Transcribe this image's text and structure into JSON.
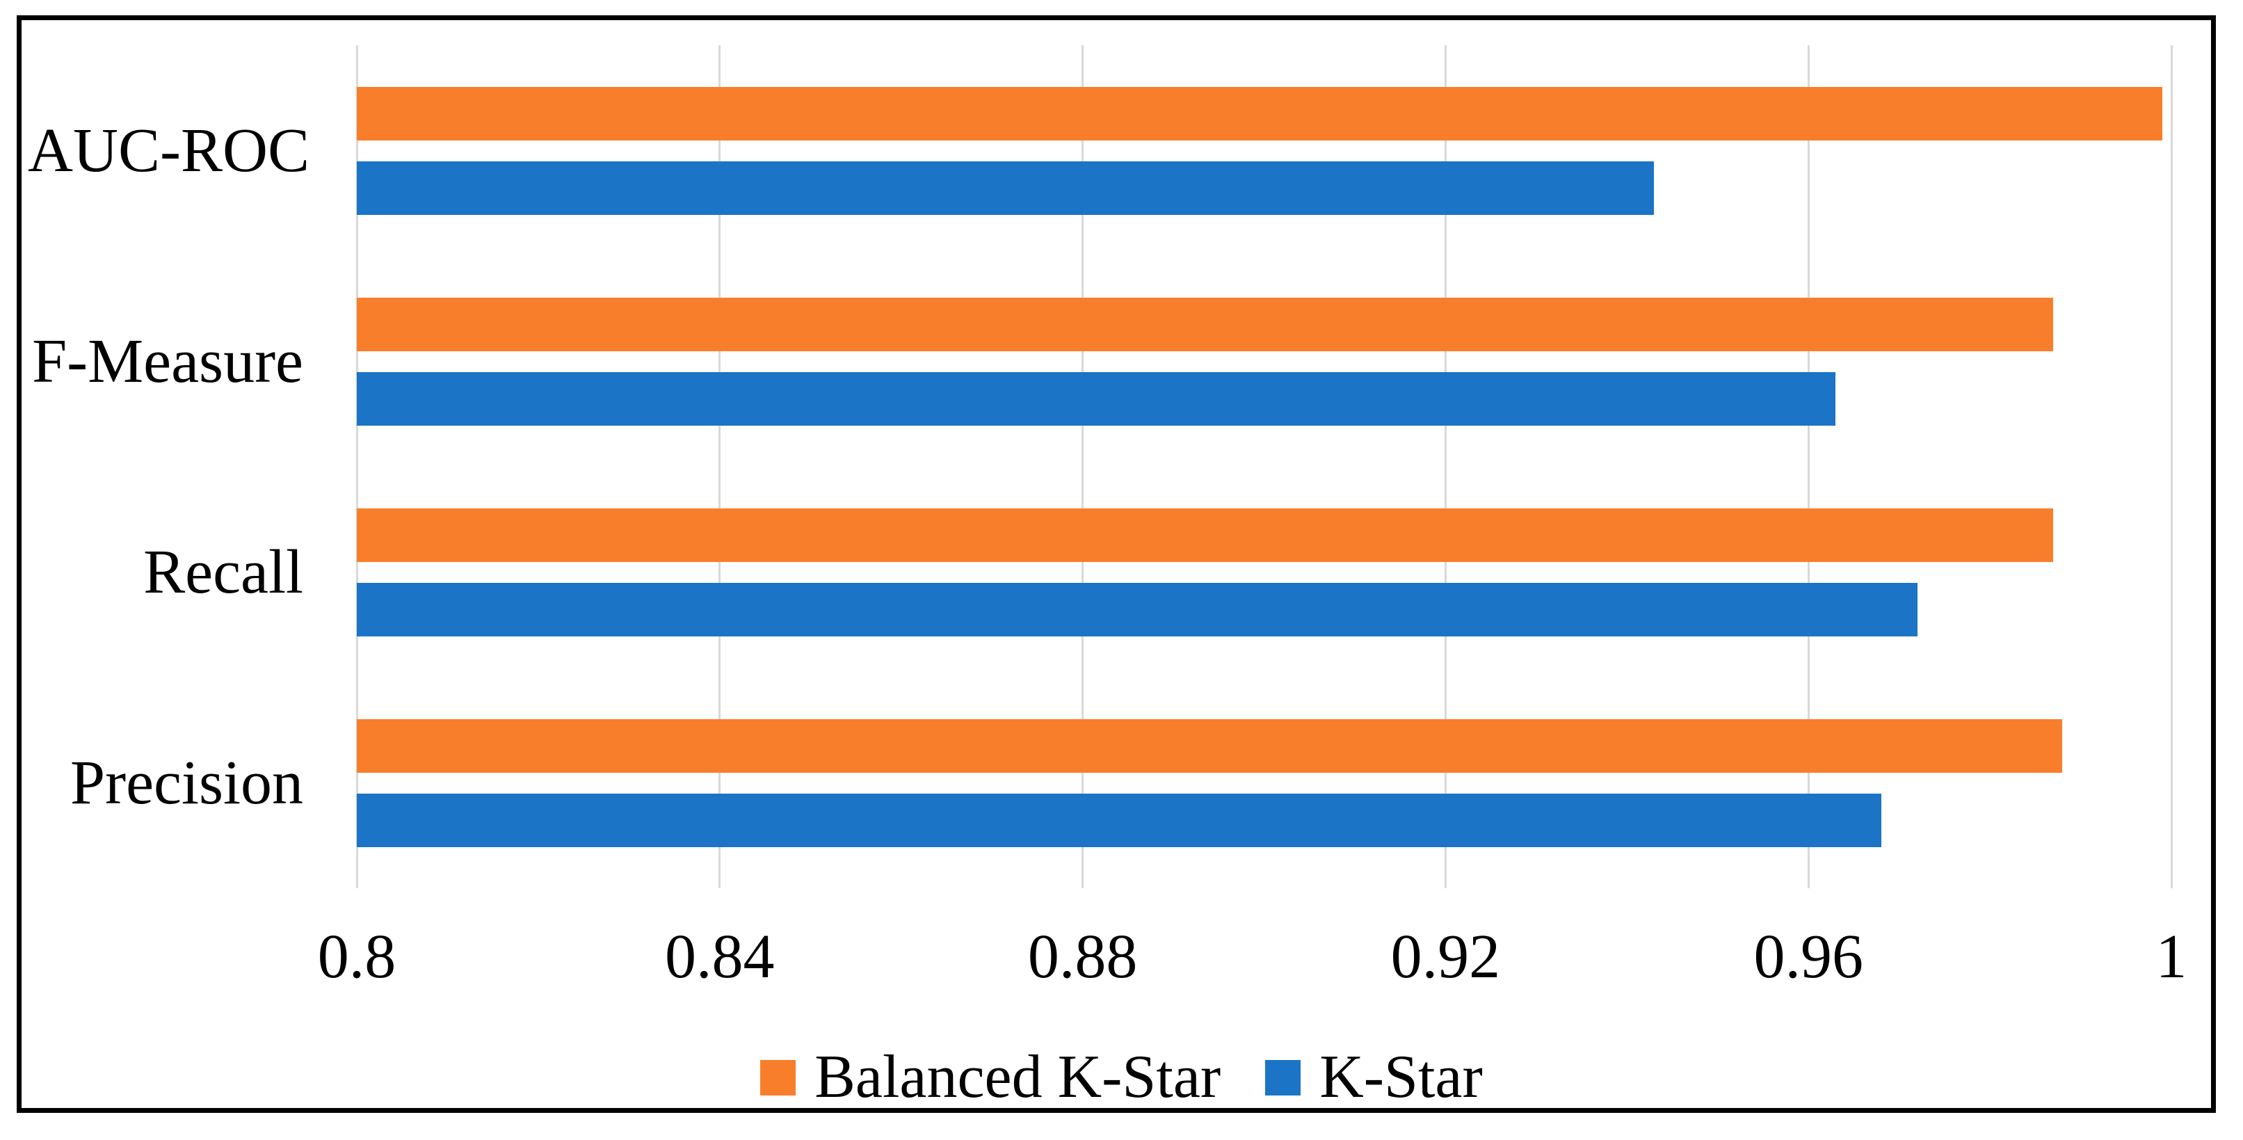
{
  "figure": {
    "background_color": "#FFFFFF",
    "border_color": "#000000",
    "text_color": "#000000",
    "gridline_color": "#D9D9D9"
  },
  "chart_data": {
    "type": "bar",
    "orientation": "horizontal",
    "title": "",
    "categories": [
      "AUC-ROC",
      "F-Measure",
      "Recall",
      "Precision"
    ],
    "series": [
      {
        "name": "Balanced K-Star",
        "color": "#F97E2B",
        "values": [
          0.999,
          0.987,
          0.987,
          0.988
        ]
      },
      {
        "name": "K-Star",
        "color": "#1B74C5",
        "values": [
          0.943,
          0.963,
          0.972,
          0.968
        ]
      }
    ],
    "x_axis": {
      "min": 0.8,
      "max": 1.0,
      "tick_step": 0.04,
      "tick_labels": [
        "0.8",
        "0.84",
        "0.88",
        "0.92",
        "0.96",
        "1"
      ]
    },
    "y_axis": {
      "label_alignment": "right"
    },
    "gridlines": {
      "vertical": true,
      "horizontal": false
    },
    "legend": {
      "position": "bottom-center",
      "items": [
        {
          "label": "Balanced K-Star",
          "color": "#F97E2B"
        },
        {
          "label": "K-Star",
          "color": "#1B74C5"
        }
      ]
    }
  }
}
